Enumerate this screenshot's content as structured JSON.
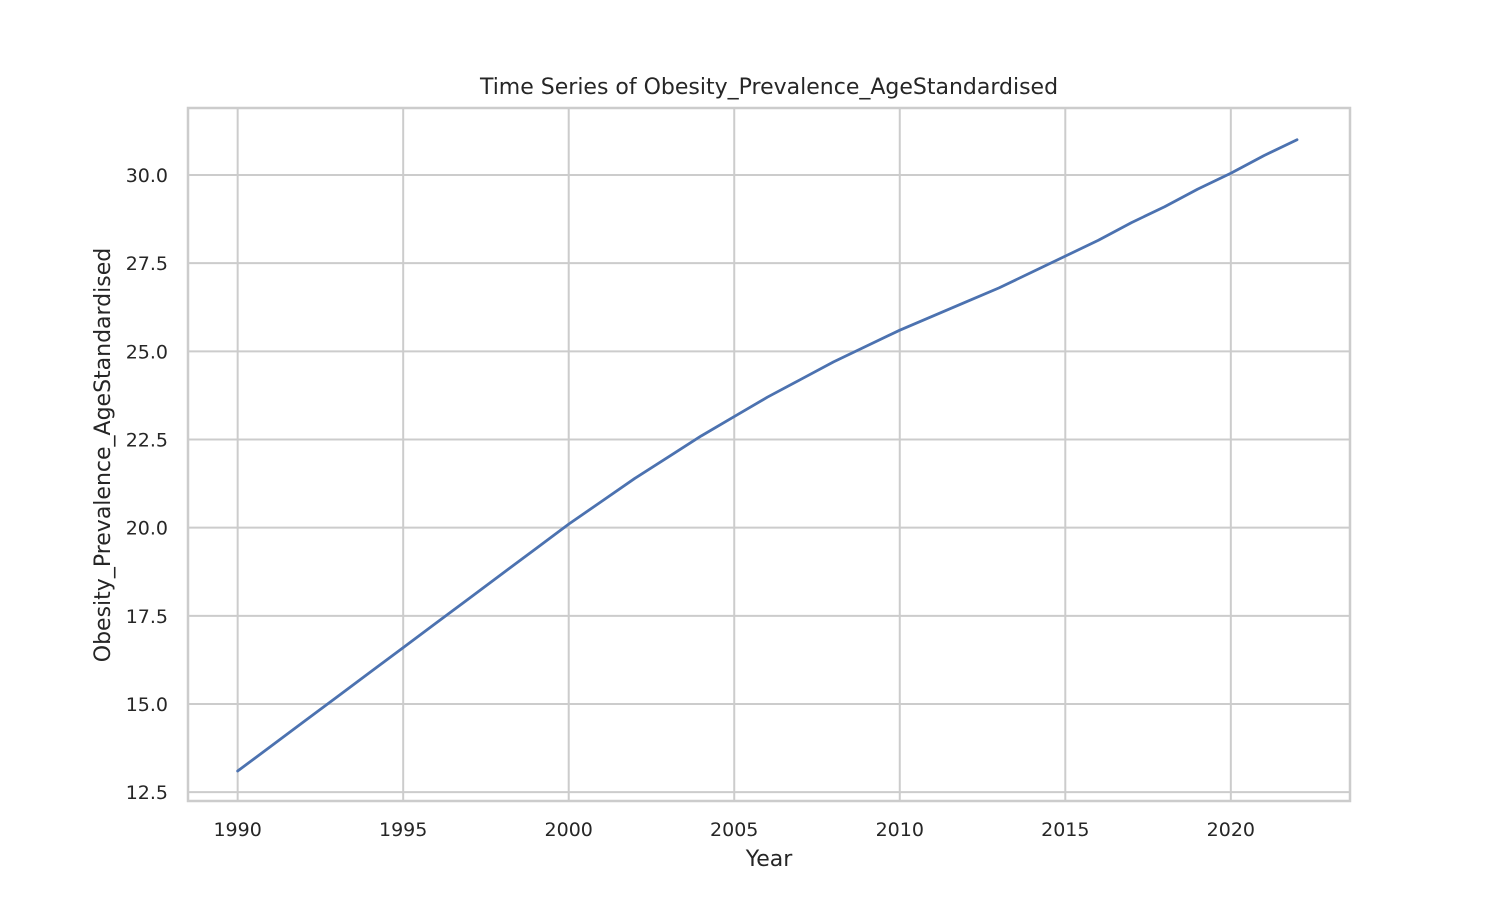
{
  "chart_data": {
    "type": "line",
    "title": "Time Series of Obesity_Prevalence_AgeStandardised",
    "xlabel": "Year",
    "ylabel": "Obesity_Prevalence_AgeStandardised",
    "xlim": [
      1988.5,
      2023.6
    ],
    "ylim": [
      12.25,
      31.9
    ],
    "x_ticks": [
      1990,
      1995,
      2000,
      2005,
      2010,
      2015,
      2020
    ],
    "y_ticks": [
      12.5,
      15.0,
      17.5,
      20.0,
      22.5,
      25.0,
      27.5,
      30.0
    ],
    "y_tick_labels": [
      "12.5",
      "15.0",
      "17.5",
      "20.0",
      "22.5",
      "25.0",
      "27.5",
      "30.0"
    ],
    "grid": true,
    "line_color": "#4c72b0",
    "x": [
      1990,
      1991,
      1992,
      1993,
      1994,
      1995,
      1996,
      1997,
      1998,
      1999,
      2000,
      2001,
      2002,
      2003,
      2004,
      2005,
      2006,
      2007,
      2008,
      2009,
      2010,
      2011,
      2012,
      2013,
      2014,
      2015,
      2016,
      2017,
      2018,
      2019,
      2020,
      2021,
      2022
    ],
    "series": [
      {
        "values": [
          13.1,
          13.8,
          14.5,
          15.2,
          15.9,
          16.6,
          17.3,
          18.0,
          18.7,
          19.4,
          20.1,
          20.75,
          21.4,
          22.0,
          22.6,
          23.15,
          23.7,
          24.2,
          24.7,
          25.15,
          25.6,
          26.0,
          26.4,
          26.8,
          27.25,
          27.7,
          28.15,
          28.65,
          29.1,
          29.6,
          30.05,
          30.55,
          31.0
        ]
      }
    ]
  }
}
